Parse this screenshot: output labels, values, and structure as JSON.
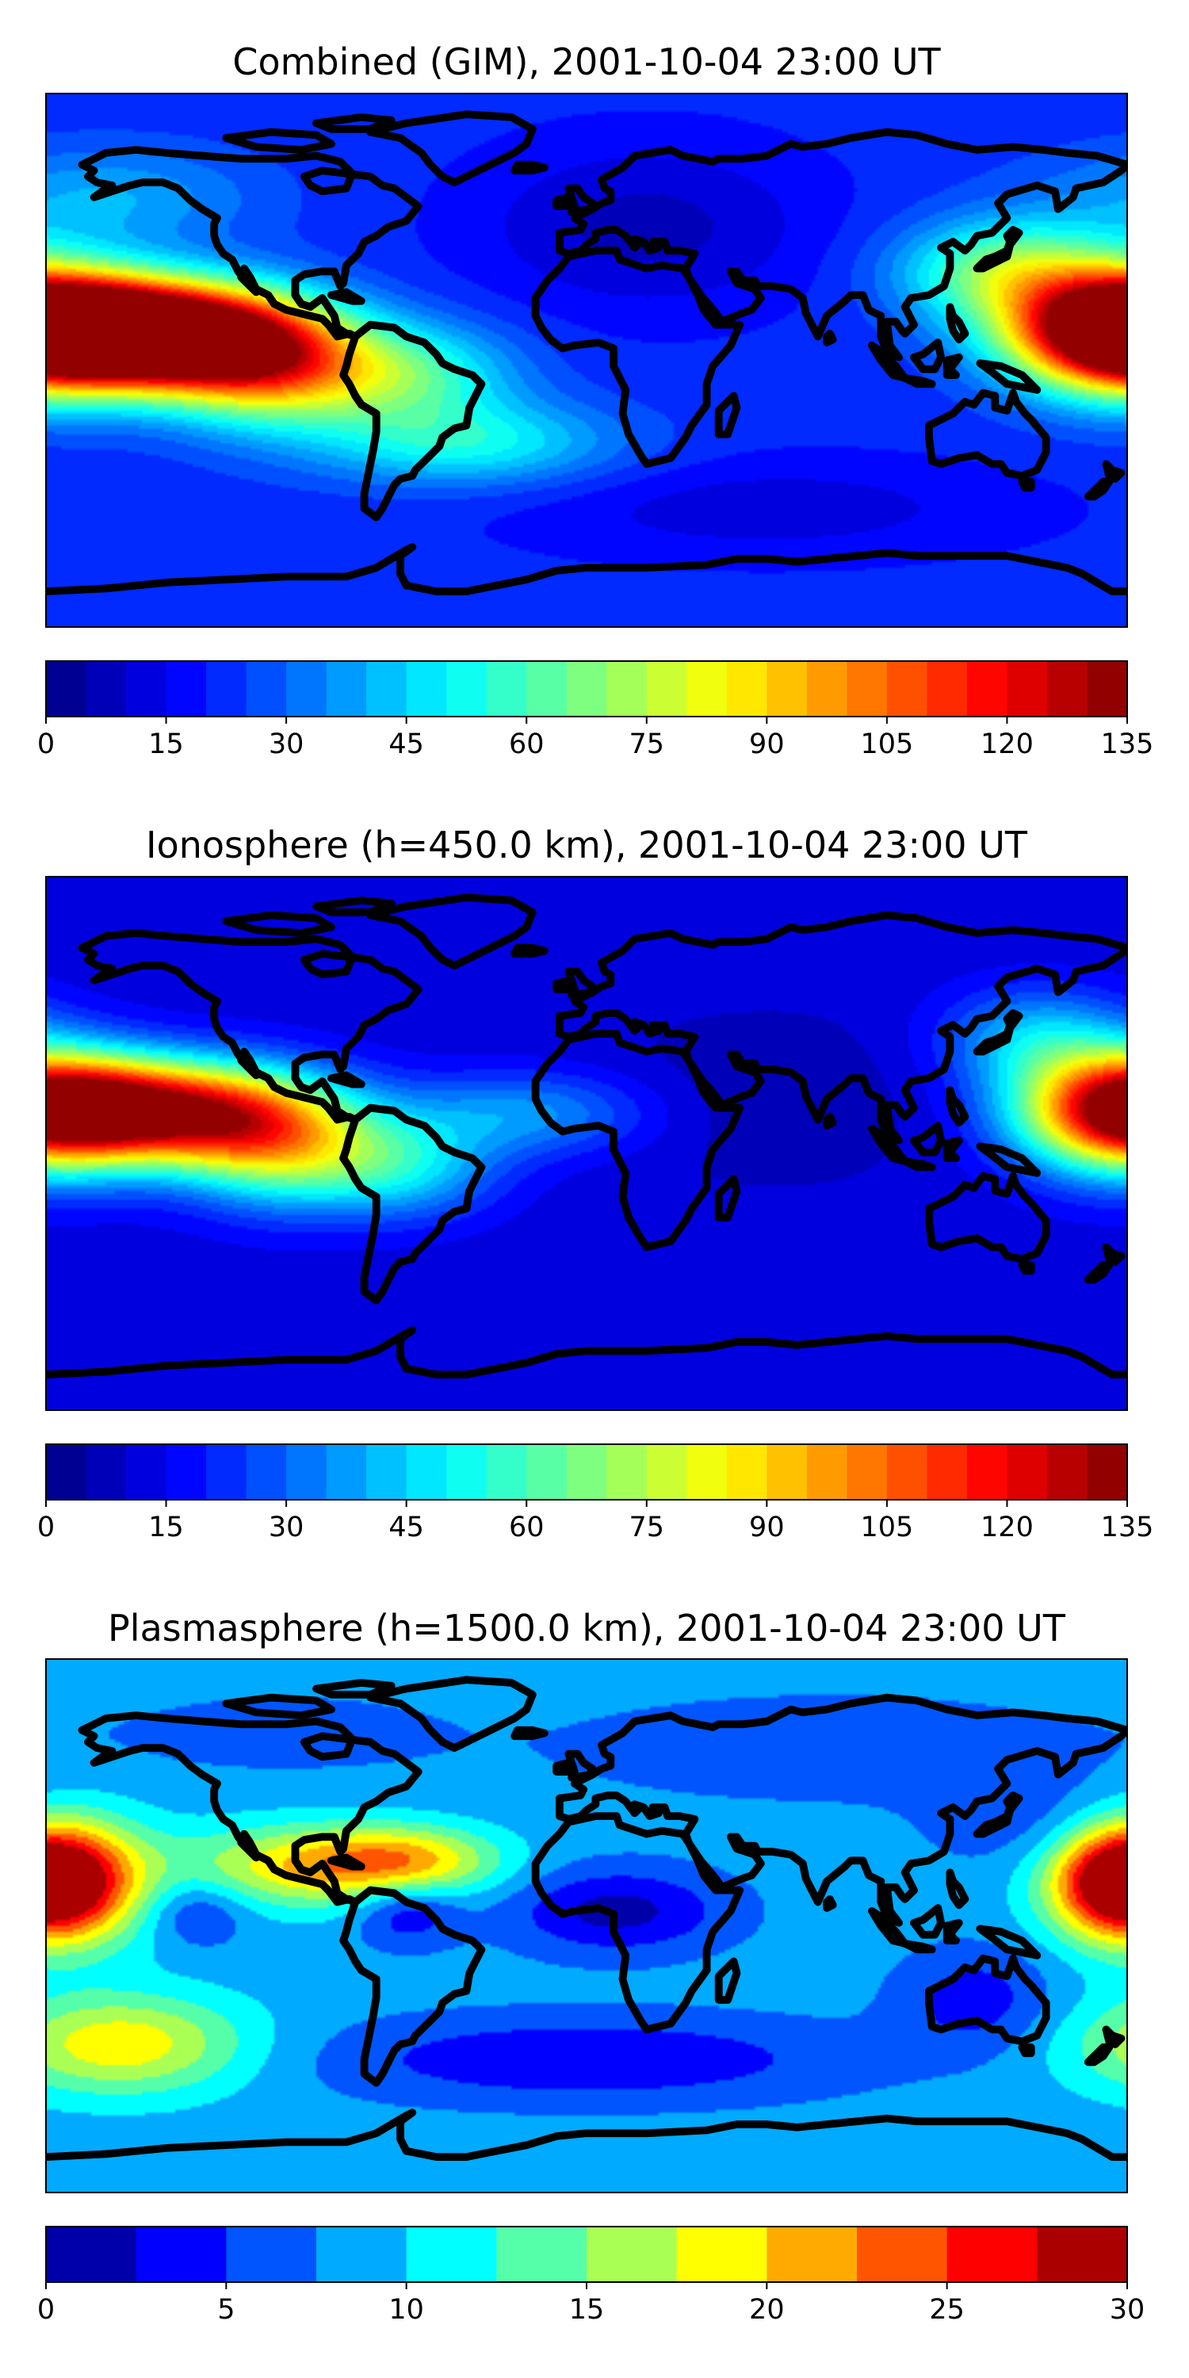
{
  "panels": [
    {
      "title": "Combined (GIM), 2001-10-04 23:00 UT",
      "colorbar": {
        "min": 0,
        "max": 135,
        "levels": 27,
        "ticks": [
          "0",
          "15",
          "30",
          "45",
          "60",
          "75",
          "90",
          "105",
          "120",
          "135"
        ]
      },
      "field": {
        "base": 22,
        "blobs": [
          {
            "lon": -168,
            "lat": 10,
            "slon": 30,
            "slat": 12,
            "amp": 110
          },
          {
            "lon": -130,
            "lat": 8,
            "slon": 28,
            "slat": 12,
            "amp": 95
          },
          {
            "lon": -105,
            "lat": -2,
            "slon": 25,
            "slat": 14,
            "amp": 60
          },
          {
            "lon": -60,
            "lat": -5,
            "slon": 25,
            "slat": 12,
            "amp": 35
          },
          {
            "lon": -40,
            "lat": -28,
            "slon": 35,
            "slat": 10,
            "amp": 30
          },
          {
            "lon": 178,
            "lat": 10,
            "slon": 25,
            "slat": 15,
            "amp": 80
          },
          {
            "lon": 140,
            "lat": 30,
            "slon": 25,
            "slat": 12,
            "amp": 45
          },
          {
            "lon": -160,
            "lat": 55,
            "slon": 35,
            "slat": 12,
            "amp": 18
          },
          {
            "lon": 20,
            "lat": 45,
            "slon": 40,
            "slat": 20,
            "amp": -14
          },
          {
            "lon": 60,
            "lat": -50,
            "slon": 60,
            "slat": 12,
            "amp": -10
          }
        ]
      }
    },
    {
      "title": "Ionosphere  (h=450.0 km), 2001-10-04 23:00 UT",
      "colorbar": {
        "min": 0,
        "max": 135,
        "levels": 27,
        "ticks": [
          "0",
          "15",
          "30",
          "45",
          "60",
          "75",
          "90",
          "105",
          "120",
          "135"
        ]
      },
      "field": {
        "base": 12,
        "blobs": [
          {
            "lon": -168,
            "lat": 12,
            "slon": 28,
            "slat": 12,
            "amp": 85
          },
          {
            "lon": -125,
            "lat": 10,
            "slon": 28,
            "slat": 12,
            "amp": 80
          },
          {
            "lon": -100,
            "lat": -2,
            "slon": 24,
            "slat": 14,
            "amp": 50
          },
          {
            "lon": -60,
            "lat": -8,
            "slon": 22,
            "slat": 12,
            "amp": 30
          },
          {
            "lon": 178,
            "lat": 10,
            "slon": 24,
            "slat": 15,
            "amp": 65
          },
          {
            "lon": 150,
            "lat": 35,
            "slon": 22,
            "slat": 12,
            "amp": 30
          },
          {
            "lon": -20,
            "lat": 10,
            "slon": 30,
            "slat": 10,
            "amp": 25
          },
          {
            "lon": 60,
            "lat": 15,
            "slon": 40,
            "slat": 20,
            "amp": -6
          }
        ]
      }
    },
    {
      "title": "Plasmasphere (h=1500.0 km), 2001-10-04 23:00 UT",
      "colorbar": {
        "min": 0,
        "max": 30,
        "levels": 12,
        "ticks": [
          "0",
          "5",
          "10",
          "15",
          "20",
          "25",
          "30"
        ]
      },
      "field": {
        "base": 8.5,
        "blobs": [
          {
            "lon": -175,
            "lat": 15,
            "slon": 20,
            "slat": 15,
            "amp": 18
          },
          {
            "lon": 178,
            "lat": 15,
            "slon": 15,
            "slat": 12,
            "amp": 14
          },
          {
            "lon": -95,
            "lat": 20,
            "slon": 30,
            "slat": 10,
            "amp": 10
          },
          {
            "lon": -60,
            "lat": 22,
            "slon": 22,
            "slat": 8,
            "amp": 10
          },
          {
            "lon": -155,
            "lat": -40,
            "slon": 30,
            "slat": 12,
            "amp": 11
          },
          {
            "lon": 10,
            "lat": 5,
            "slon": 25,
            "slat": 10,
            "amp": -7
          },
          {
            "lon": -60,
            "lat": 5,
            "slon": 12,
            "slat": 8,
            "amp": -6
          },
          {
            "lon": -130,
            "lat": 5,
            "slon": 12,
            "slat": 8,
            "amp": -5
          },
          {
            "lon": 130,
            "lat": -25,
            "slon": 18,
            "slat": 12,
            "amp": -5
          },
          {
            "lon": 0,
            "lat": -45,
            "slon": 60,
            "slat": 10,
            "amp": -6
          },
          {
            "lon": 80,
            "lat": 60,
            "slon": 60,
            "slat": 12,
            "amp": -3
          },
          {
            "lon": 150,
            "lat": 35,
            "slon": 25,
            "slat": 12,
            "amp": -3
          },
          {
            "lon": -100,
            "lat": 65,
            "slon": 40,
            "slat": 10,
            "amp": -2
          }
        ]
      }
    }
  ],
  "colors": {
    "jet_stops": [
      "#00007f",
      "#0000ff",
      "#007fff",
      "#00ffff",
      "#7fff7f",
      "#ffff00",
      "#ff7f00",
      "#ff0000",
      "#7f0000"
    ],
    "coastline": "#000000"
  }
}
